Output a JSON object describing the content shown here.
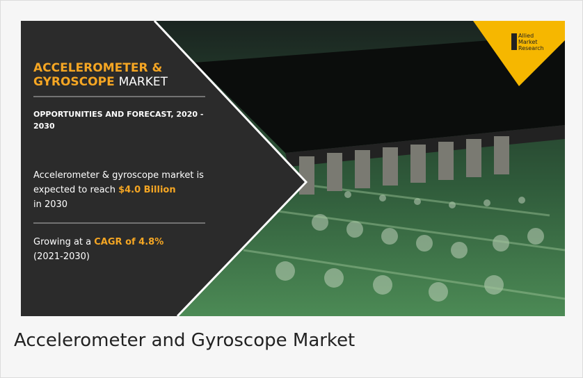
{
  "infographic": {
    "title": {
      "line1": "ACCELEROMETER &",
      "highlight": "GYROSCOPE",
      "rest": "MARKET"
    },
    "subtitle": "OPPORTUNITIES AND FORECAST, 2020 - 2030",
    "stat1": {
      "before": "Accelerometer & gyroscope market is expected to reach",
      "highlight": "$4.0 Billion",
      "after": "in 2030"
    },
    "stat2": {
      "before": "Growing at a",
      "highlight": "CAGR of 4.8%",
      "after": "(2021-2030)"
    },
    "logo": [
      "Allied",
      "Market",
      "Research"
    ]
  },
  "caption": "Accelerometer and Gyroscope Market"
}
